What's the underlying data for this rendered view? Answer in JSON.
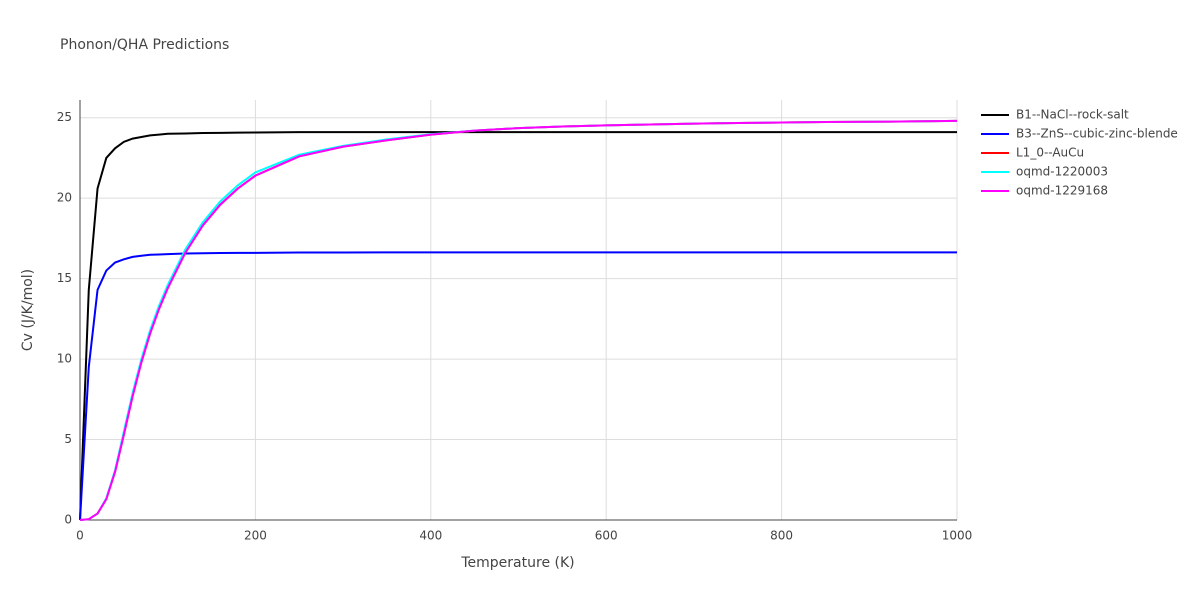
{
  "chart_data": {
    "type": "line",
    "title": "Phonon/QHA Predictions",
    "x_label": "Temperature (K)",
    "y_label": "Cv (J/K/mol)",
    "x": [
      0,
      10,
      20,
      30,
      40,
      50,
      60,
      70,
      80,
      90,
      100,
      120,
      140,
      160,
      180,
      200,
      250,
      300,
      350,
      400,
      450,
      500,
      550,
      600,
      650,
      700,
      750,
      800,
      850,
      900,
      950,
      1000
    ],
    "series": [
      {
        "name": "B1--NaCl--rock-salt",
        "color": "#000000",
        "values": [
          0,
          14.3,
          20.6,
          22.5,
          23.1,
          23.5,
          23.7,
          23.8,
          23.9,
          23.95,
          24.0,
          24.02,
          24.05,
          24.06,
          24.07,
          24.08,
          24.1,
          24.1,
          24.1,
          24.1,
          24.1,
          24.1,
          24.1,
          24.1,
          24.1,
          24.1,
          24.1,
          24.1,
          24.1,
          24.1,
          24.1,
          24.1
        ]
      },
      {
        "name": "B3--ZnS--cubic-zinc-blende",
        "color": "#0000ff",
        "values": [
          0,
          9.5,
          14.3,
          15.5,
          16.0,
          16.2,
          16.35,
          16.42,
          16.48,
          16.5,
          16.52,
          16.56,
          16.58,
          16.59,
          16.6,
          16.6,
          16.62,
          16.62,
          16.63,
          16.63,
          16.63,
          16.63,
          16.63,
          16.63,
          16.63,
          16.63,
          16.63,
          16.63,
          16.63,
          16.63,
          16.63,
          16.63
        ]
      },
      {
        "name": "L1_0--AuCu",
        "color": "#ff0000",
        "values": [
          0,
          0.05,
          0.4,
          1.3,
          3.0,
          5.3,
          7.7,
          9.8,
          11.6,
          13.1,
          14.4,
          16.6,
          18.3,
          19.6,
          20.6,
          21.4,
          22.6,
          23.2,
          23.6,
          23.95,
          24.2,
          24.35,
          24.45,
          24.52,
          24.58,
          24.63,
          24.67,
          24.7,
          24.73,
          24.75,
          24.77,
          24.8
        ]
      },
      {
        "name": "oqmd-1220003",
        "color": "#00ffff",
        "values": [
          0,
          0.05,
          0.4,
          1.35,
          3.1,
          5.5,
          7.9,
          10.0,
          11.8,
          13.3,
          14.6,
          16.8,
          18.5,
          19.8,
          20.8,
          21.6,
          22.7,
          23.25,
          23.65,
          23.97,
          24.2,
          24.35,
          24.45,
          24.52,
          24.58,
          24.63,
          24.67,
          24.7,
          24.73,
          24.75,
          24.77,
          24.8
        ]
      },
      {
        "name": "oqmd-1229168",
        "color": "#ff00ff",
        "values": [
          0,
          0.05,
          0.4,
          1.3,
          3.0,
          5.3,
          7.7,
          9.8,
          11.6,
          13.1,
          14.4,
          16.6,
          18.3,
          19.6,
          20.6,
          21.4,
          22.6,
          23.2,
          23.6,
          23.95,
          24.2,
          24.35,
          24.45,
          24.52,
          24.58,
          24.63,
          24.67,
          24.7,
          24.73,
          24.75,
          24.77,
          24.8
        ]
      }
    ],
    "xlim": [
      0,
      1000
    ],
    "xticks": [
      0,
      200,
      400,
      600,
      800,
      1000
    ],
    "ylim": [
      0,
      26.1
    ],
    "yticks": [
      0,
      5,
      10,
      15,
      20,
      25
    ],
    "grid": true,
    "legend": "right"
  }
}
